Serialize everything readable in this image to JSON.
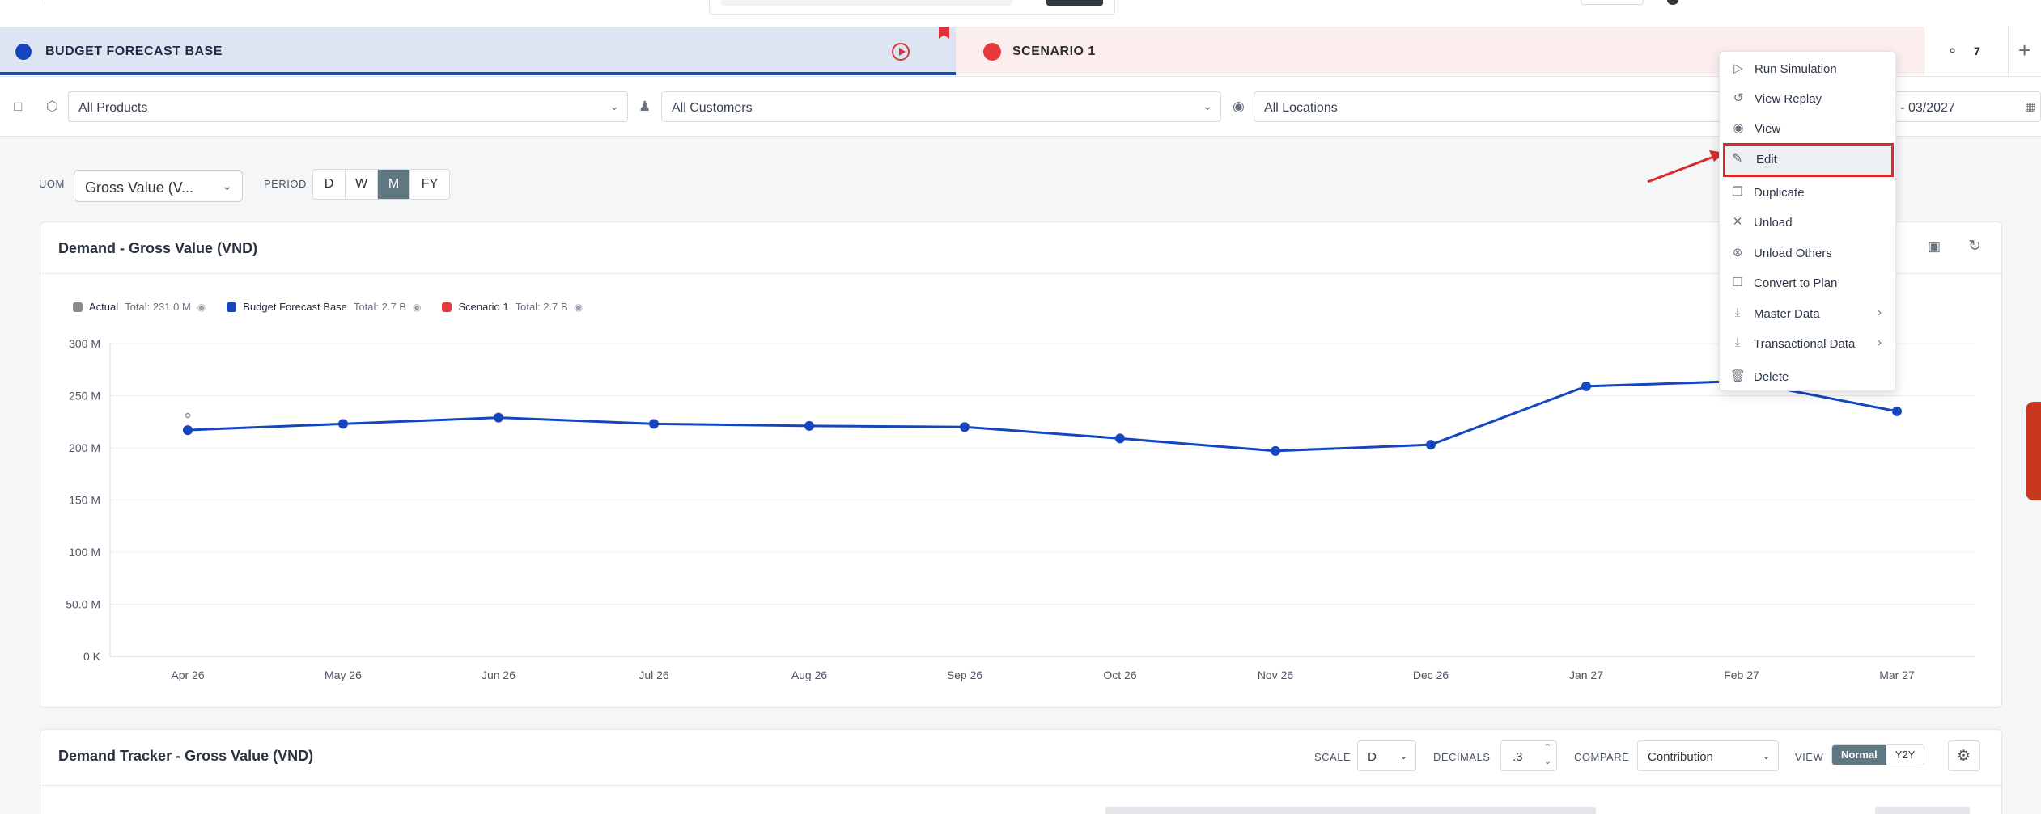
{
  "tabs": [
    {
      "label": "BUDGET FORECAST BASE",
      "color": "#1546c0"
    },
    {
      "label": "SCENARIO 1",
      "color": "#e5393c"
    }
  ],
  "hidden_count": "7",
  "filters": {
    "products": "All Products",
    "customers": "All Customers",
    "locations": "All Locations",
    "period_range": "26 - 03/2027"
  },
  "controls": {
    "uom_label": "UOM",
    "uom_value": "Gross Value (V...",
    "period_label": "PERIOD",
    "periods": [
      "D",
      "W",
      "M",
      "FY"
    ],
    "period_selected": "M"
  },
  "demand_card": {
    "title": "Demand - Gross Value (VND)",
    "legend": [
      {
        "name": "Actual",
        "total": "Total: 231.0 M",
        "color": "#8a8a8a"
      },
      {
        "name": "Budget Forecast Base",
        "total": "Total: 2.7 B",
        "color": "#1546c0"
      },
      {
        "name": "Scenario 1",
        "total": "Total: 2.7 B",
        "color": "#e5393c"
      }
    ]
  },
  "chart_data": {
    "type": "line",
    "title": "Demand - Gross Value (VND)",
    "categories": [
      "Apr 26",
      "May 26",
      "Jun 26",
      "Jul 26",
      "Aug 26",
      "Sep 26",
      "Oct 26",
      "Nov 26",
      "Dec 26",
      "Jan 27",
      "Feb 27",
      "Mar 27"
    ],
    "y_ticks": [
      "300 M",
      "250 M",
      "200 M",
      "150 M",
      "100 M",
      "50.0 M",
      "0 K"
    ],
    "ylim": [
      0,
      300
    ],
    "y_unit": "M",
    "grid": true,
    "legend_position": "top-left",
    "series": [
      {
        "name": "Budget Forecast Base",
        "color": "#1546c0",
        "values": [
          217,
          223,
          229,
          223,
          221,
          220,
          209,
          197,
          203,
          259,
          264,
          235
        ]
      },
      {
        "name": "Actual",
        "color": "#8a8a8a",
        "values": [
          231,
          null,
          null,
          null,
          null,
          null,
          null,
          null,
          null,
          null,
          null,
          null
        ]
      }
    ]
  },
  "tracker_card": {
    "title": "Demand Tracker - Gross Value (VND)",
    "scale_label": "SCALE",
    "scale_value": "D",
    "decimals_label": "DECIMALS",
    "decimals_value": ".3",
    "compare_label": "COMPARE",
    "compare_value": "Contribution",
    "view_label": "VIEW",
    "view_options": [
      "Normal",
      "Y2Y"
    ],
    "view_selected": "Normal"
  },
  "context_menu": {
    "items": [
      {
        "label": "Run Simulation",
        "icon": "play-icon"
      },
      {
        "label": "View Replay",
        "icon": "history-icon"
      },
      {
        "label": "View",
        "icon": "eye-icon"
      },
      {
        "label": "Edit",
        "icon": "pencil-icon"
      },
      {
        "label": "Duplicate",
        "icon": "copy-icon"
      },
      {
        "label": "Unload",
        "icon": "close-icon"
      },
      {
        "label": "Unload Others",
        "icon": "circle-x-icon"
      },
      {
        "label": "Convert to Plan",
        "icon": "square-icon"
      },
      {
        "label": "Master Data",
        "icon": "download-icon"
      },
      {
        "label": "Transactional Data",
        "icon": "download-icon"
      },
      {
        "label": "Delete",
        "icon": "trash-icon"
      }
    ],
    "highlighted": "Edit",
    "highlight_color": "#d82a2a"
  }
}
